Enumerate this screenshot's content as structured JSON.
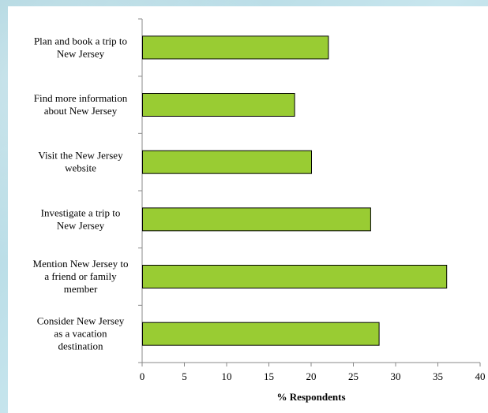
{
  "chart_data": {
    "type": "bar",
    "orientation": "horizontal",
    "categories": [
      "Plan and book a trip to New Jersey",
      "Find more information about New Jersey",
      "Visit the New Jersey website",
      "Investigate a trip to New Jersey",
      "Mention New Jersey to a friend or family member",
      "Consider New Jersey as a vacation destination"
    ],
    "category_lines": [
      [
        "Plan and book a trip to",
        "New Jersey"
      ],
      [
        "Find more information",
        "about New Jersey"
      ],
      [
        "Visit the New Jersey",
        "website"
      ],
      [
        "Investigate a trip to",
        "New Jersey"
      ],
      [
        "Mention New Jersey to",
        "a friend or family",
        "member"
      ],
      [
        "Consider New Jersey",
        "as a vacation",
        "destination"
      ]
    ],
    "values": [
      22,
      18,
      20,
      27,
      36,
      28
    ],
    "xlabel": "% Respondents",
    "xlim": [
      0,
      40
    ],
    "xticks": [
      0,
      5,
      10,
      15,
      20,
      25,
      30,
      35,
      40
    ],
    "grid": false,
    "legend": "none",
    "bar_color": "#99cc33",
    "bar_edge_color": "#000000"
  }
}
